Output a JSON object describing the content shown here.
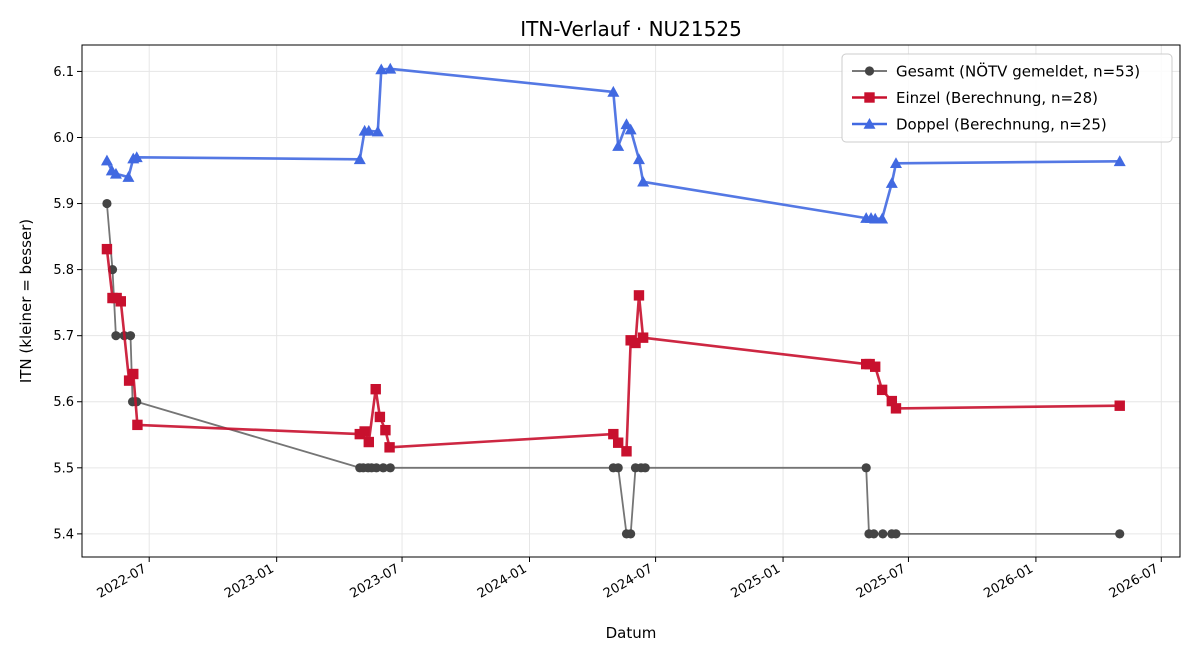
{
  "chart_data": {
    "type": "line",
    "title": "ITN-Verlauf · NU21525",
    "xlabel": "Datum",
    "ylabel": "ITN  (kleiner = besser)",
    "x_type": "date",
    "xlim": [
      "2022-03-26",
      "2026-07-28"
    ],
    "ylim": [
      5.365,
      6.14
    ],
    "x_ticks": [
      "2022-07-01",
      "2023-01-01",
      "2023-07-01",
      "2024-01-01",
      "2024-07-01",
      "2025-01-01",
      "2025-07-01",
      "2026-01-01",
      "2026-07-01"
    ],
    "x_tick_labels": [
      "2022-07",
      "2023-01",
      "2023-07",
      "2024-01",
      "2024-07",
      "2025-01",
      "2025-07",
      "2026-01",
      "2026-07"
    ],
    "y_ticks": [
      5.4,
      5.5,
      5.6,
      5.7,
      5.8,
      5.9,
      6.0,
      6.1
    ],
    "y_tick_labels": [
      "5.4",
      "5.5",
      "5.6",
      "5.7",
      "5.8",
      "5.9",
      "6.0",
      "6.1"
    ],
    "grid": true,
    "legend_position": "top-right",
    "series": [
      {
        "name": "Gesamt (NÖTV gemeldet, n=53)",
        "color": "#444444",
        "marker": "circle",
        "x": [
          "2022-05-01",
          "2022-05-09",
          "2022-05-14",
          "2022-05-26",
          "2022-06-04",
          "2022-06-07",
          "2022-06-13",
          "2023-05-01",
          "2023-05-06",
          "2023-05-13",
          "2023-05-18",
          "2023-05-25",
          "2023-06-04",
          "2023-06-14",
          "2024-05-01",
          "2024-05-08",
          "2024-05-20",
          "2024-05-26",
          "2024-06-02",
          "2024-06-10",
          "2024-06-16",
          "2025-05-01",
          "2025-05-05",
          "2025-05-12",
          "2025-05-25",
          "2025-06-07",
          "2025-06-13",
          "2026-05-02"
        ],
        "y": [
          5.9,
          5.8,
          5.7,
          5.7,
          5.7,
          5.6,
          5.6,
          5.5,
          5.5,
          5.5,
          5.5,
          5.5,
          5.5,
          5.5,
          5.5,
          5.5,
          5.4,
          5.4,
          5.5,
          5.5,
          5.5,
          5.5,
          5.4,
          5.4,
          5.4,
          5.4,
          5.4,
          5.4
        ]
      },
      {
        "name": "Einzel (Berechnung, n=28)",
        "color": "#c8102e",
        "marker": "square",
        "x": [
          "2022-05-01",
          "2022-05-09",
          "2022-05-15",
          "2022-05-21",
          "2022-06-02",
          "2022-06-08",
          "2022-06-14",
          "2023-05-01",
          "2023-05-08",
          "2023-05-14",
          "2023-05-24",
          "2023-05-30",
          "2023-06-07",
          "2023-06-13",
          "2024-05-01",
          "2024-05-08",
          "2024-05-20",
          "2024-05-26",
          "2024-06-02",
          "2024-06-07",
          "2024-06-13",
          "2025-05-01",
          "2025-05-06",
          "2025-05-14",
          "2025-05-24",
          "2025-06-07",
          "2025-06-13",
          "2026-05-02"
        ],
        "y": [
          5.831,
          5.757,
          5.757,
          5.752,
          5.632,
          5.642,
          5.565,
          5.551,
          5.555,
          5.539,
          5.619,
          5.577,
          5.557,
          5.531,
          5.551,
          5.538,
          5.525,
          5.693,
          5.689,
          5.761,
          5.697,
          5.657,
          5.657,
          5.653,
          5.618,
          5.601,
          5.59,
          5.594
        ]
      },
      {
        "name": "Doppel (Berechnung, n=25)",
        "color": "#4169e1",
        "marker": "triangle",
        "x": [
          "2022-05-01",
          "2022-05-08",
          "2022-05-14",
          "2022-06-01",
          "2022-06-08",
          "2022-06-13",
          "2023-05-01",
          "2023-05-08",
          "2023-05-14",
          "2023-05-27",
          "2023-06-01",
          "2023-06-14",
          "2024-05-01",
          "2024-05-08",
          "2024-05-20",
          "2024-05-26",
          "2024-06-07",
          "2024-06-13",
          "2025-05-01",
          "2025-05-08",
          "2025-05-14",
          "2025-05-24",
          "2025-06-07",
          "2025-06-13",
          "2026-05-02"
        ],
        "y": [
          5.965,
          5.95,
          5.945,
          5.94,
          5.968,
          5.97,
          5.967,
          6.01,
          6.01,
          6.009,
          6.103,
          6.104,
          6.069,
          5.987,
          6.02,
          6.012,
          5.967,
          5.933,
          5.878,
          5.878,
          5.877,
          5.877,
          5.931,
          5.961,
          5.964
        ]
      }
    ]
  }
}
